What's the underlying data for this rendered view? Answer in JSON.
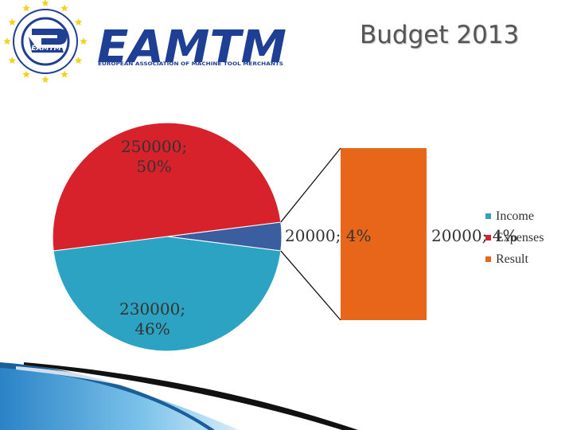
{
  "logo": {
    "wordmark": "EAMTM",
    "tagline": "EUROPEAN ASSOCIATION OF MACHINE TOOL MERCHANTS",
    "seal_text": "EAMTM",
    "seal_ring_text": "EUROPEAN ASSOCIATION OF MACHINE TOOL MERCHANTS",
    "colors": {
      "navy": "#1f3f95",
      "gold": "#f2d21d"
    }
  },
  "slide": {
    "title": "Budget 2013"
  },
  "chart_data": {
    "type": "pie",
    "subtype": "pie-of-bar",
    "title": "",
    "slices": [
      {
        "name": "Income",
        "value": 230000,
        "label": "230000;\n46%",
        "color": "#2ca3c2"
      },
      {
        "name": "Expenses",
        "value": 250000,
        "label": "250000;\n50%",
        "color": "#d8222b"
      },
      {
        "name": "Result",
        "value": 20000,
        "label": "20000; 4%",
        "color": "#3a5ea0"
      }
    ],
    "secondary_bar": {
      "name": "Result",
      "value": 20000,
      "label": "20000; 4%",
      "color": "#e8661a"
    },
    "legend": {
      "position": "right",
      "entries": [
        {
          "name": "Income",
          "color": "#2ca3c2"
        },
        {
          "name": "Expenses",
          "color": "#d8222b"
        },
        {
          "name": "Result",
          "color": "#e8661a"
        }
      ]
    }
  }
}
